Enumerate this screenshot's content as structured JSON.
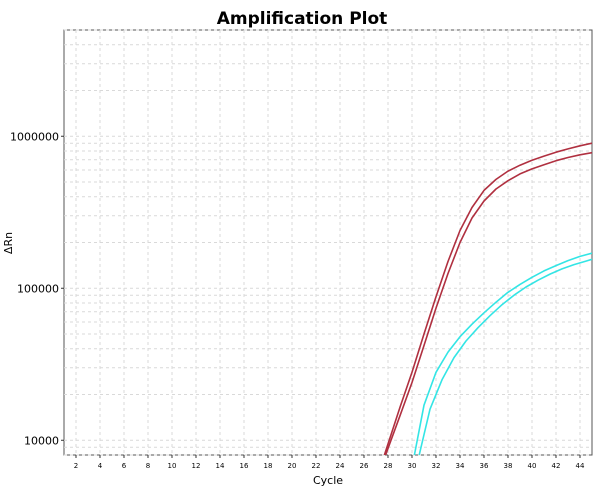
{
  "chart_data": {
    "type": "line",
    "title": "Amplification Plot",
    "xlabel": "Cycle",
    "ylabel": "ΔRn",
    "y_scale": "log",
    "xlim": [
      1,
      45
    ],
    "ylim": [
      8000,
      5000000
    ],
    "x_ticks": [
      2,
      4,
      6,
      8,
      10,
      12,
      14,
      16,
      18,
      20,
      22,
      24,
      26,
      28,
      30,
      32,
      34,
      36,
      38,
      40,
      42,
      44
    ],
    "y_ticks": [
      {
        "value": 10000,
        "label": "10000"
      },
      {
        "value": 100000,
        "label": "100000"
      },
      {
        "value": 1000000,
        "label": "1000000"
      }
    ],
    "grid": true,
    "series": [
      {
        "color": "#b03040",
        "x": [
          27.7,
          29,
          30,
          31,
          32,
          33,
          34,
          35,
          36,
          37,
          38,
          39,
          40,
          41,
          42,
          43,
          44,
          45
        ],
        "y": [
          8000,
          16500,
          28000,
          50000,
          88000,
          150000,
          240000,
          340000,
          440000,
          520000,
          590000,
          645000,
          695000,
          740000,
          785000,
          825000,
          865000,
          900000
        ]
      },
      {
        "color": "#b03040",
        "x": [
          27.8,
          29,
          30,
          31,
          32,
          33,
          34,
          35,
          36,
          37,
          38,
          39,
          40,
          41,
          42,
          43,
          44,
          45
        ],
        "y": [
          8000,
          14500,
          24000,
          42000,
          74000,
          125000,
          200000,
          290000,
          375000,
          450000,
          510000,
          565000,
          610000,
          650000,
          690000,
          725000,
          755000,
          780000
        ]
      },
      {
        "color": "#33e5e5",
        "x": [
          30.2,
          31,
          32,
          33,
          34,
          35,
          36,
          37,
          38,
          39,
          40,
          41,
          42,
          43,
          44,
          45
        ],
        "y": [
          8000,
          17000,
          28000,
          38000,
          48000,
          58000,
          69000,
          81000,
          94000,
          106000,
          118000,
          130000,
          141000,
          152000,
          162000,
          170000
        ]
      },
      {
        "color": "#33e5e5",
        "x": [
          30.6,
          31.5,
          32.5,
          33.5,
          34.5,
          35.5,
          36.5,
          37.5,
          38.5,
          39.5,
          40.5,
          41.5,
          42.5,
          43.5,
          44.5,
          45
        ],
        "y": [
          8000,
          16000,
          25000,
          35000,
          45000,
          55000,
          66000,
          78000,
          90000,
          102000,
          113000,
          124000,
          134000,
          143000,
          151000,
          155000
        ]
      }
    ]
  }
}
